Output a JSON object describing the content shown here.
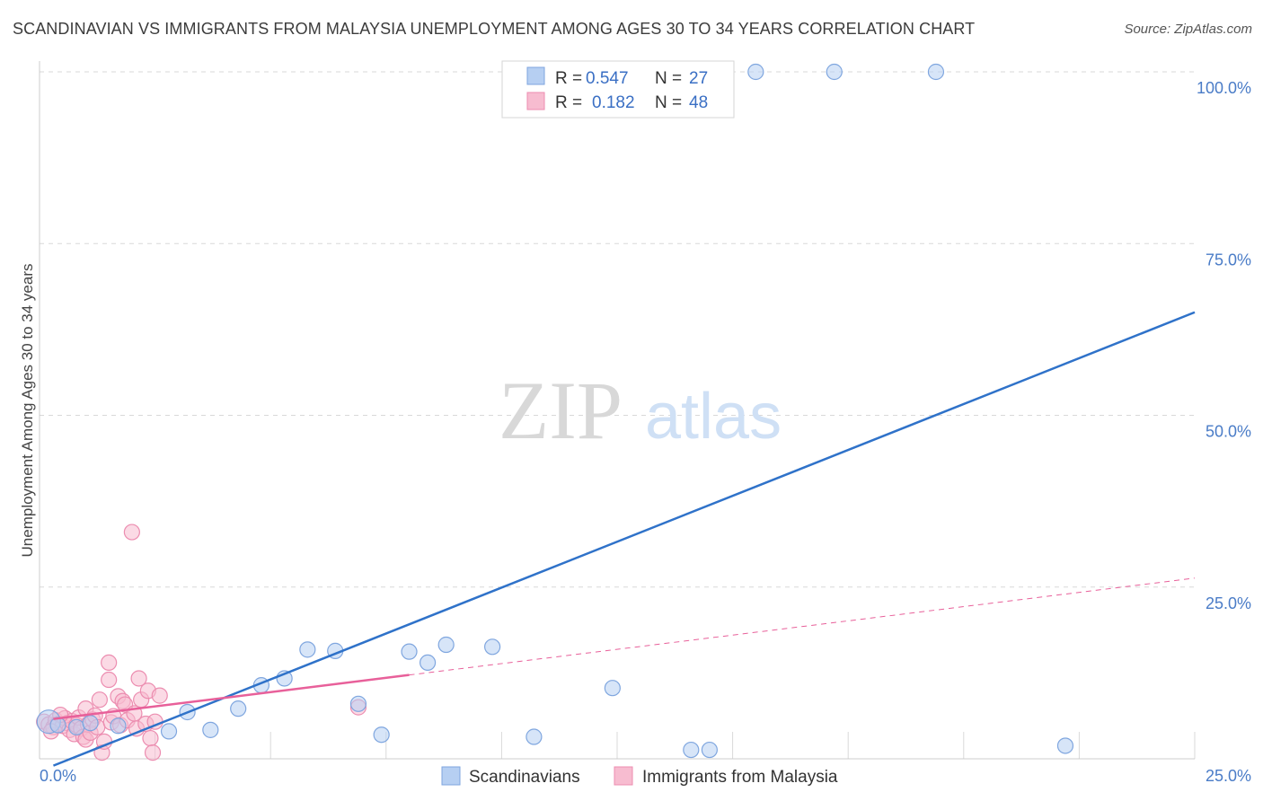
{
  "title": "SCANDINAVIAN VS IMMIGRANTS FROM MALAYSIA UNEMPLOYMENT AMONG AGES 30 TO 34 YEARS CORRELATION CHART",
  "source": "Source: ZipAtlas.com",
  "watermark": {
    "zip": "ZIP",
    "atlas": "atlas"
  },
  "colors": {
    "blue_fill": "#b6cff2",
    "blue_stroke": "#7fa6df",
    "blue_line": "#2f72c9",
    "pink_fill": "#f7bcd0",
    "pink_stroke": "#ec8db0",
    "pink_line": "#e8609a",
    "grid": "#d9d9d9",
    "tick": "#4a7cc7"
  },
  "legend_top": {
    "rows": [
      {
        "r_label": "R =",
        "r_value": "0.547",
        "n_label": "N =",
        "n_value": "27",
        "series": "blue"
      },
      {
        "r_label": "R =",
        "r_value": "0.182",
        "n_label": "N =",
        "n_value": "48",
        "series": "pink"
      }
    ]
  },
  "legend_bottom": {
    "items": [
      {
        "label": "Scandinavians",
        "series": "blue"
      },
      {
        "label": "Immigrants from Malaysia",
        "series": "pink"
      }
    ]
  },
  "chart_data": {
    "type": "scatter",
    "title": "SCANDINAVIAN VS IMMIGRANTS FROM MALAYSIA UNEMPLOYMENT AMONG AGES 30 TO 34 YEARS CORRELATION CHART",
    "xlabel": "",
    "ylabel": "Unemployment Among Ages 30 to 34 years",
    "xlim": [
      0,
      25
    ],
    "ylim": [
      0,
      100
    ],
    "x_tick_labels": [
      {
        "value": 0,
        "label": "0.0%"
      },
      {
        "value": 25,
        "label": "25.0%"
      }
    ],
    "y_tick_labels": [
      {
        "value": 25,
        "label": "25.0%"
      },
      {
        "value": 50,
        "label": "50.0%"
      },
      {
        "value": 75,
        "label": "75.0%"
      },
      {
        "value": 100,
        "label": "100.0%"
      }
    ],
    "x_grid": [
      2.5,
      5,
      7.5,
      10,
      12.5,
      15,
      17.5,
      20,
      22.5,
      25
    ],
    "y_grid": [
      25,
      50,
      75,
      100
    ],
    "series": [
      {
        "name": "Scandinavians",
        "color": "blue",
        "R": 0.547,
        "N": 27,
        "points": [
          [
            0.2,
            5.4
          ],
          [
            0.8,
            4.6
          ],
          [
            1.7,
            4.8
          ],
          [
            2.8,
            4.0
          ],
          [
            3.2,
            6.8
          ],
          [
            3.7,
            4.2
          ],
          [
            4.3,
            7.3
          ],
          [
            4.8,
            10.7
          ],
          [
            5.3,
            11.7
          ],
          [
            5.8,
            15.9
          ],
          [
            6.4,
            15.7
          ],
          [
            6.9,
            8.0
          ],
          [
            7.4,
            3.5
          ],
          [
            8.0,
            15.6
          ],
          [
            8.4,
            14.0
          ],
          [
            8.8,
            16.6
          ],
          [
            9.8,
            16.3
          ],
          [
            10.7,
            3.2
          ],
          [
            12.4,
            10.3
          ],
          [
            14.1,
            1.3
          ],
          [
            14.5,
            1.3
          ],
          [
            15.5,
            100.0
          ],
          [
            17.2,
            100.0
          ],
          [
            19.4,
            100.0
          ],
          [
            22.2,
            1.9
          ],
          [
            0.4,
            4.9
          ],
          [
            1.1,
            5.2
          ]
        ],
        "trendline": {
          "x": [
            0.3,
            25.0
          ],
          "y": [
            -1.0,
            65.0
          ]
        }
      },
      {
        "name": "Immigrants from Malaysia",
        "color": "pink",
        "R": 0.182,
        "N": 48,
        "points": [
          [
            0.1,
            5.4
          ],
          [
            0.2,
            5.0
          ],
          [
            0.3,
            4.6
          ],
          [
            0.35,
            5.6
          ],
          [
            0.4,
            5.1
          ],
          [
            0.5,
            4.8
          ],
          [
            0.55,
            5.9
          ],
          [
            0.6,
            5.2
          ],
          [
            0.65,
            4.2
          ],
          [
            0.7,
            5.5
          ],
          [
            0.75,
            3.6
          ],
          [
            0.8,
            4.9
          ],
          [
            0.85,
            6.0
          ],
          [
            0.9,
            4.4
          ],
          [
            0.95,
            3.2
          ],
          [
            1.0,
            2.8
          ],
          [
            1.0,
            7.3
          ],
          [
            1.05,
            5.0
          ],
          [
            1.1,
            3.8
          ],
          [
            1.15,
            5.7
          ],
          [
            1.2,
            6.3
          ],
          [
            1.25,
            4.6
          ],
          [
            1.3,
            8.6
          ],
          [
            1.35,
            0.9
          ],
          [
            1.4,
            2.5
          ],
          [
            1.5,
            14.0
          ],
          [
            1.5,
            11.5
          ],
          [
            1.55,
            5.3
          ],
          [
            1.6,
            6.2
          ],
          [
            1.7,
            9.1
          ],
          [
            1.75,
            4.9
          ],
          [
            1.8,
            8.4
          ],
          [
            1.85,
            7.9
          ],
          [
            1.9,
            5.6
          ],
          [
            2.0,
            33.0
          ],
          [
            2.05,
            6.6
          ],
          [
            2.1,
            4.4
          ],
          [
            2.15,
            11.7
          ],
          [
            2.2,
            8.6
          ],
          [
            2.3,
            5.1
          ],
          [
            2.35,
            9.9
          ],
          [
            2.4,
            3.0
          ],
          [
            2.45,
            0.9
          ],
          [
            2.5,
            5.4
          ],
          [
            2.6,
            9.2
          ],
          [
            6.9,
            7.5
          ],
          [
            0.45,
            6.4
          ],
          [
            0.25,
            4.0
          ]
        ],
        "trendline_solid": {
          "x": [
            0.3,
            8.0
          ],
          "y": [
            5.8,
            12.2
          ]
        },
        "trendline_dashed": {
          "x": [
            8.0,
            25.0
          ],
          "y": [
            12.2,
            26.3
          ]
        }
      }
    ]
  }
}
